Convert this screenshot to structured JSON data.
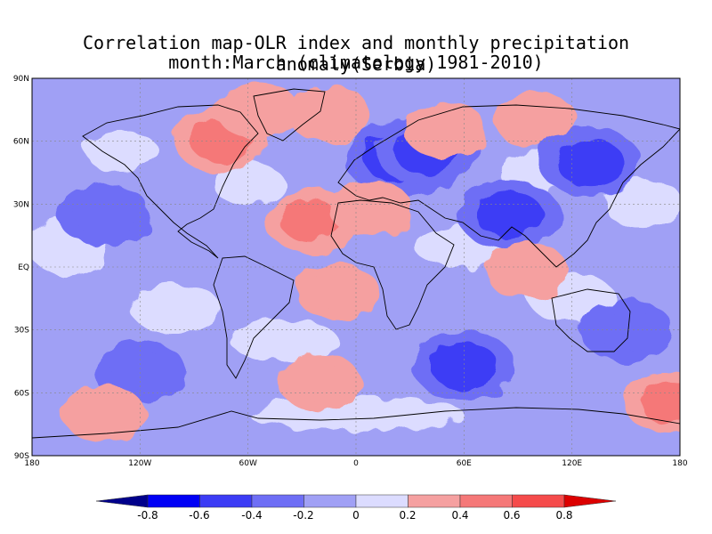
{
  "title": {
    "line1": "Correlation map-OLR index and monthly precipitation anomaly(Serbia)",
    "line2": "month:March (climatology 1981-2010)"
  },
  "map": {
    "projection": "equirectangular",
    "lon_ticks": [
      "180",
      "120W",
      "60W",
      "0",
      "60E",
      "120E",
      "180"
    ],
    "lat_ticks": [
      "90N",
      "60N",
      "30N",
      "EQ",
      "30S",
      "60S",
      "90S"
    ],
    "grid": "dashed-lat-lon"
  },
  "colorbar": {
    "labels": [
      "-0.8",
      "-0.6",
      "-0.4",
      "-0.2",
      "0",
      "0.2",
      "0.4",
      "0.6",
      "0.8"
    ],
    "colors": [
      "#00008b",
      "#0000f5",
      "#3c3cf5",
      "#6e6ef5",
      "#a0a0f5",
      "#dcdcff",
      "#f5a0a0",
      "#f57878",
      "#f54b4b",
      "#f51e1e",
      "#dc0000"
    ]
  },
  "chart_data": {
    "type": "heatmap",
    "variable": "correlation coefficient",
    "levels": [
      -0.8,
      -0.6,
      -0.4,
      -0.2,
      0,
      0.2,
      0.4,
      0.6,
      0.8
    ],
    "xlim": [
      -180,
      180
    ],
    "ylim": [
      -90,
      90
    ],
    "features": [
      {
        "lon": 25,
        "lat": 52,
        "value": -0.6
      },
      {
        "lon": 40,
        "lat": 55,
        "value": -0.5
      },
      {
        "lon": 85,
        "lat": 25,
        "value": -0.5
      },
      {
        "lon": -75,
        "lat": 60,
        "value": 0.4
      },
      {
        "lon": -55,
        "lat": 75,
        "value": 0.3
      },
      {
        "lon": -15,
        "lat": 73,
        "value": 0.3
      },
      {
        "lon": 50,
        "lat": 65,
        "value": 0.3
      },
      {
        "lon": 100,
        "lat": 70,
        "value": 0.3
      },
      {
        "lon": -25,
        "lat": 22,
        "value": 0.4
      },
      {
        "lon": 8,
        "lat": 28,
        "value": 0.3
      },
      {
        "lon": 130,
        "lat": 50,
        "value": -0.5
      },
      {
        "lon": -140,
        "lat": 25,
        "value": -0.4
      },
      {
        "lon": -120,
        "lat": -50,
        "value": -0.4
      },
      {
        "lon": 60,
        "lat": -47,
        "value": -0.5
      },
      {
        "lon": 150,
        "lat": -30,
        "value": -0.4
      },
      {
        "lon": 95,
        "lat": -2,
        "value": 0.3
      },
      {
        "lon": -10,
        "lat": -12,
        "value": 0.3
      },
      {
        "lon": -140,
        "lat": -70,
        "value": 0.3
      },
      {
        "lon": 175,
        "lat": -65,
        "value": 0.4
      },
      {
        "lon": -20,
        "lat": -55,
        "value": 0.3
      }
    ]
  }
}
